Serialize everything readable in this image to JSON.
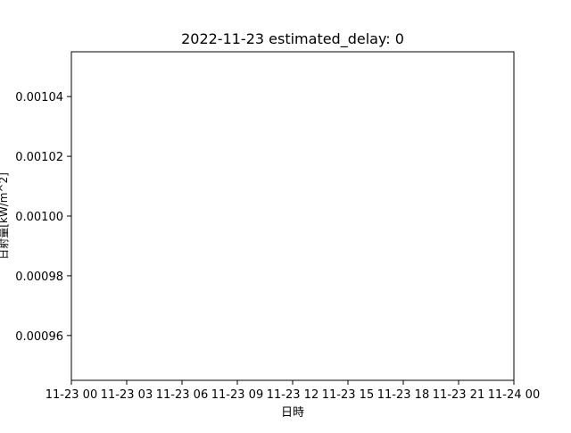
{
  "chart_data": {
    "type": "line",
    "title": "2022-11-23 estimated_delay: 0",
    "xlabel": "日時",
    "ylabel": "日射量[kW/m^2]",
    "x_tick_labels": [
      "11-23 00",
      "11-23 03",
      "11-23 06",
      "11-23 09",
      "11-23 12",
      "11-23 15",
      "11-23 18",
      "11-23 21",
      "11-24 00"
    ],
    "y_tick_labels": [
      "0.00096",
      "0.00098",
      "0.00100",
      "0.00102",
      "0.00104"
    ],
    "y_ticks": [
      0.00096,
      0.00098,
      0.001,
      0.00102,
      0.00104
    ],
    "ylim": [
      0.000945,
      0.001055
    ],
    "series": [],
    "grid": false,
    "legend": false
  }
}
